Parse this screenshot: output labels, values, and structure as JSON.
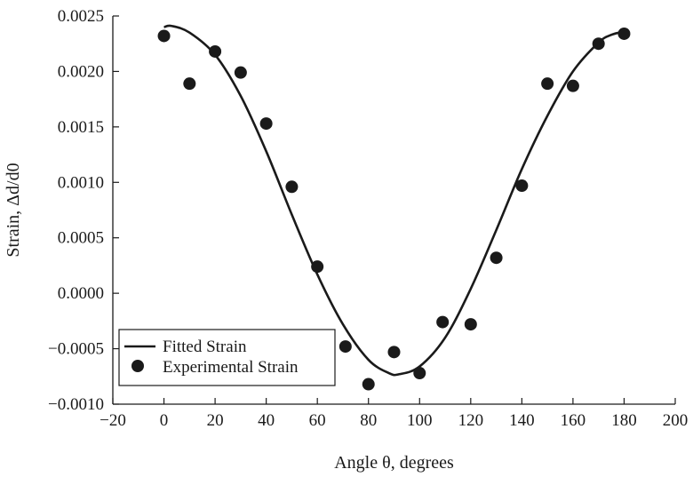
{
  "chart_data": {
    "type": "scatter",
    "xlabel": "Angle θ, degrees",
    "ylabel": "Strain, Δd/d0",
    "xlim": [
      -20,
      200
    ],
    "ylim": [
      -0.001,
      0.0025
    ],
    "xticks": [
      "−20",
      "0",
      "20",
      "40",
      "60",
      "80",
      "100",
      "120",
      "140",
      "160",
      "180",
      "200"
    ],
    "yticks": [
      "−0.0010",
      "−0.0005",
      "0.0000",
      "0.0005",
      "0.0010",
      "0.0015",
      "0.0020",
      "0.0025"
    ],
    "grid": false,
    "legend_position": "bottom-left",
    "series": [
      {
        "name": "Fitted Strain",
        "type": "line",
        "color": "#1a1a1a",
        "x": [
          0,
          3,
          10,
          20,
          30,
          40,
          50,
          60,
          70,
          80,
          88,
          92,
          100,
          110,
          120,
          130,
          140,
          150,
          160,
          170,
          175,
          180
        ],
        "y": [
          0.0024,
          0.00241,
          0.00235,
          0.00215,
          0.00178,
          0.00128,
          0.00071,
          0.00017,
          -0.00028,
          -0.0006,
          -0.00072,
          -0.00073,
          -0.00066,
          -0.0004,
          4e-05,
          0.00057,
          0.00112,
          0.0016,
          0.002,
          0.00226,
          0.00233,
          0.00236
        ]
      },
      {
        "name": "Experimental Strain",
        "type": "scatter",
        "color": "#1a1a1a",
        "x": [
          0,
          10,
          20,
          30,
          40,
          50,
          60,
          71,
          80,
          90,
          100,
          109,
          120,
          130,
          140,
          150,
          160,
          170,
          180
        ],
        "y": [
          0.00232,
          0.00189,
          0.00218,
          0.00199,
          0.00153,
          0.00096,
          0.00024,
          -0.00048,
          -0.00082,
          -0.00053,
          -0.00072,
          -0.00026,
          -0.00028,
          0.00032,
          0.00097,
          0.00189,
          0.00187,
          0.00225,
          0.00234
        ]
      }
    ]
  }
}
